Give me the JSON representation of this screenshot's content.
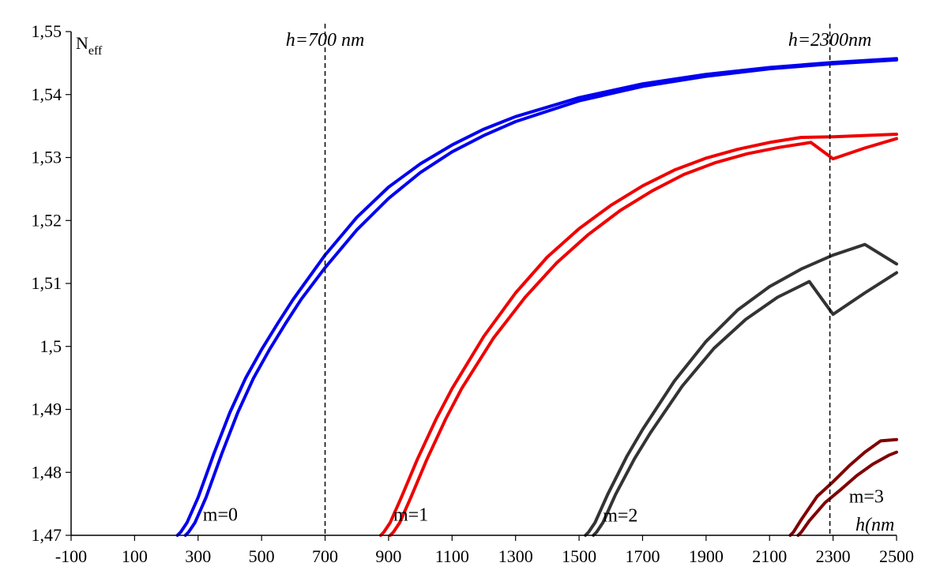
{
  "chart_data": {
    "type": "line",
    "ylabel_main": "N",
    "ylabel_sub": "eff",
    "xlabel": "h(nm",
    "xlim": [
      -100,
      2500
    ],
    "ylim": [
      1.47,
      1.55
    ],
    "x_ticks": [
      "-100",
      "100",
      "300",
      "500",
      "700",
      "900",
      "1100",
      "1300",
      "1500",
      "1700",
      "1900",
      "2100",
      "2300",
      "2500"
    ],
    "y_ticks": [
      "1,47",
      "1,48",
      "1,49",
      "1,5",
      "1,51",
      "1,52",
      "1,53",
      "1,54",
      "1,55"
    ],
    "vlines": [
      {
        "x": 700,
        "label": "h=700 nm"
      },
      {
        "x": 2290,
        "label": "h=2300nm"
      }
    ],
    "mode_labels": [
      {
        "text": "m=0",
        "x": 370,
        "y": 1.4733
      },
      {
        "text": "m=1",
        "x": 970,
        "y": 1.4733
      },
      {
        "text": "m=2",
        "x": 1630,
        "y": 1.4732
      },
      {
        "text": "m=3",
        "x": 2405,
        "y": 1.4762
      }
    ],
    "series": [
      {
        "color": "#0000ee",
        "points": [
          [
            235,
            1.47
          ],
          [
            245,
            1.4705
          ],
          [
            265,
            1.472
          ],
          [
            300,
            1.476
          ],
          [
            350,
            1.483
          ],
          [
            400,
            1.4895
          ],
          [
            450,
            1.495
          ],
          [
            500,
            1.4995
          ],
          [
            550,
            1.5036
          ],
          [
            600,
            1.5075
          ],
          [
            700,
            1.5145
          ],
          [
            800,
            1.5205
          ],
          [
            900,
            1.5253
          ],
          [
            1000,
            1.529
          ],
          [
            1100,
            1.532
          ],
          [
            1200,
            1.5345
          ],
          [
            1300,
            1.5365
          ],
          [
            1500,
            1.5395
          ],
          [
            1700,
            1.5417
          ],
          [
            1900,
            1.5432
          ],
          [
            2100,
            1.5443
          ],
          [
            2300,
            1.5451
          ],
          [
            2500,
            1.5457
          ]
        ]
      },
      {
        "color": "#0000ee",
        "points": [
          [
            260,
            1.47
          ],
          [
            270,
            1.4705
          ],
          [
            290,
            1.472
          ],
          [
            325,
            1.476
          ],
          [
            375,
            1.483
          ],
          [
            425,
            1.4895
          ],
          [
            475,
            1.495
          ],
          [
            525,
            1.4995
          ],
          [
            575,
            1.5036
          ],
          [
            625,
            1.5075
          ],
          [
            700,
            1.5125
          ],
          [
            800,
            1.5185
          ],
          [
            900,
            1.5235
          ],
          [
            1000,
            1.5276
          ],
          [
            1100,
            1.5309
          ],
          [
            1200,
            1.5335
          ],
          [
            1300,
            1.5357
          ],
          [
            1500,
            1.539
          ],
          [
            1700,
            1.5413
          ],
          [
            1900,
            1.5429
          ],
          [
            2100,
            1.5441
          ],
          [
            2300,
            1.5449
          ],
          [
            2500,
            1.5455
          ]
        ]
      },
      {
        "color": "#ee0000",
        "points": [
          [
            875,
            1.47
          ],
          [
            885,
            1.4705
          ],
          [
            905,
            1.472
          ],
          [
            940,
            1.476
          ],
          [
            990,
            1.482
          ],
          [
            1050,
            1.4885
          ],
          [
            1100,
            1.4933
          ],
          [
            1200,
            1.5016
          ],
          [
            1300,
            1.5085
          ],
          [
            1400,
            1.5142
          ],
          [
            1500,
            1.5187
          ],
          [
            1600,
            1.5224
          ],
          [
            1700,
            1.5255
          ],
          [
            1800,
            1.528
          ],
          [
            1900,
            1.5299
          ],
          [
            2000,
            1.5313
          ],
          [
            2100,
            1.5324
          ],
          [
            2200,
            1.5332
          ],
          [
            2300,
            1.5333
          ],
          [
            2400,
            1.5335
          ],
          [
            2500,
            1.5337
          ]
        ]
      },
      {
        "color": "#ee0000",
        "points": [
          [
            905,
            1.47
          ],
          [
            915,
            1.4705
          ],
          [
            935,
            1.472
          ],
          [
            970,
            1.476
          ],
          [
            1020,
            1.482
          ],
          [
            1080,
            1.4885
          ],
          [
            1130,
            1.4933
          ],
          [
            1230,
            1.5013
          ],
          [
            1330,
            1.5078
          ],
          [
            1430,
            1.5133
          ],
          [
            1530,
            1.5178
          ],
          [
            1630,
            1.5216
          ],
          [
            1730,
            1.5247
          ],
          [
            1830,
            1.5273
          ],
          [
            1930,
            1.5292
          ],
          [
            2030,
            1.5306
          ],
          [
            2130,
            1.5316
          ],
          [
            2230,
            1.5324
          ],
          [
            2300,
            1.5298
          ],
          [
            2400,
            1.5315
          ],
          [
            2500,
            1.533
          ]
        ]
      },
      {
        "color": "#333333",
        "points": [
          [
            1520,
            1.47
          ],
          [
            1530,
            1.4705
          ],
          [
            1550,
            1.472
          ],
          [
            1590,
            1.4765
          ],
          [
            1650,
            1.4825
          ],
          [
            1700,
            1.4868
          ],
          [
            1800,
            1.4945
          ],
          [
            1900,
            1.5008
          ],
          [
            2000,
            1.5058
          ],
          [
            2100,
            1.5095
          ],
          [
            2200,
            1.5123
          ],
          [
            2300,
            1.5145
          ],
          [
            2400,
            1.5162
          ],
          [
            2500,
            1.5131
          ]
        ]
      },
      {
        "color": "#333333",
        "points": [
          [
            1545,
            1.47
          ],
          [
            1555,
            1.4705
          ],
          [
            1575,
            1.472
          ],
          [
            1615,
            1.4765
          ],
          [
            1675,
            1.4822
          ],
          [
            1725,
            1.4863
          ],
          [
            1825,
            1.4937
          ],
          [
            1925,
            1.4997
          ],
          [
            2025,
            1.5043
          ],
          [
            2125,
            1.5078
          ],
          [
            2225,
            1.5103
          ],
          [
            2300,
            1.5051
          ],
          [
            2400,
            1.5085
          ],
          [
            2500,
            1.5117
          ]
        ]
      },
      {
        "color": "#800000",
        "points": [
          [
            2165,
            1.47
          ],
          [
            2175,
            1.4705
          ],
          [
            2200,
            1.4725
          ],
          [
            2250,
            1.4762
          ],
          [
            2300,
            1.4785
          ],
          [
            2350,
            1.481
          ],
          [
            2400,
            1.4832
          ],
          [
            2450,
            1.485
          ],
          [
            2500,
            1.4852
          ]
        ]
      },
      {
        "color": "#800000",
        "points": [
          [
            2190,
            1.47
          ],
          [
            2200,
            1.4705
          ],
          [
            2225,
            1.4723
          ],
          [
            2275,
            1.4752
          ],
          [
            2325,
            1.4773
          ],
          [
            2375,
            1.4795
          ],
          [
            2425,
            1.4813
          ],
          [
            2475,
            1.4827
          ],
          [
            2500,
            1.4832
          ]
        ]
      }
    ]
  }
}
